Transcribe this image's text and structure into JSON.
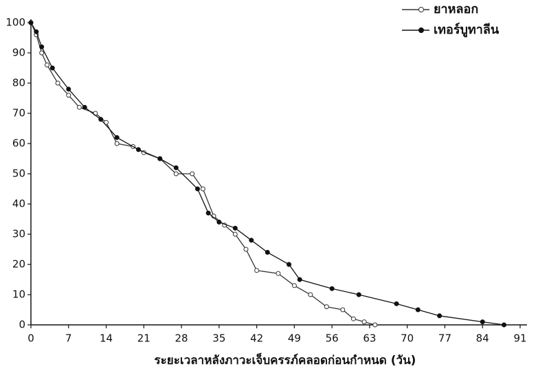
{
  "chart_data": {
    "type": "line",
    "x_label": "ระยะเวลาหลังภาวะเจ็บครรภ์คลอดก่อนกำหนด (วัน)",
    "xlim": [
      0,
      91
    ],
    "xticks": [
      0,
      7,
      14,
      21,
      28,
      35,
      42,
      49,
      56,
      63,
      70,
      77,
      84,
      91
    ],
    "ylim": [
      0,
      100
    ],
    "yticks": [
      0,
      10,
      20,
      30,
      40,
      50,
      60,
      70,
      80,
      90,
      100
    ],
    "legend": "top-right",
    "series": [
      {
        "name": "ยาหลอก",
        "color": "#333333",
        "marker": "open",
        "x": [
          0,
          1,
          2,
          3,
          5,
          7,
          9,
          12,
          14,
          16,
          19,
          21,
          24,
          27,
          30,
          32,
          34,
          36,
          38,
          40,
          42,
          46,
          49,
          52,
          55,
          58,
          60,
          62,
          64
        ],
        "values": [
          100,
          96,
          90,
          86,
          80,
          76,
          72,
          70,
          67,
          60,
          59,
          57,
          55,
          50,
          50,
          45,
          36,
          33,
          30,
          25,
          18,
          17,
          13,
          10,
          6,
          5,
          2,
          1,
          0
        ]
      },
      {
        "name": "เทอร์บูทาลีน",
        "color": "#111111",
        "marker": "filled",
        "x": [
          0,
          1,
          2,
          4,
          7,
          10,
          13,
          16,
          20,
          24,
          27,
          31,
          33,
          35,
          38,
          41,
          44,
          48,
          50,
          56,
          61,
          68,
          72,
          76,
          84,
          88
        ],
        "values": [
          100,
          97,
          92,
          85,
          78,
          72,
          68,
          62,
          58,
          55,
          52,
          45,
          37,
          34,
          32,
          28,
          24,
          20,
          15,
          12,
          10,
          7,
          5,
          3,
          1,
          0
        ]
      }
    ]
  }
}
